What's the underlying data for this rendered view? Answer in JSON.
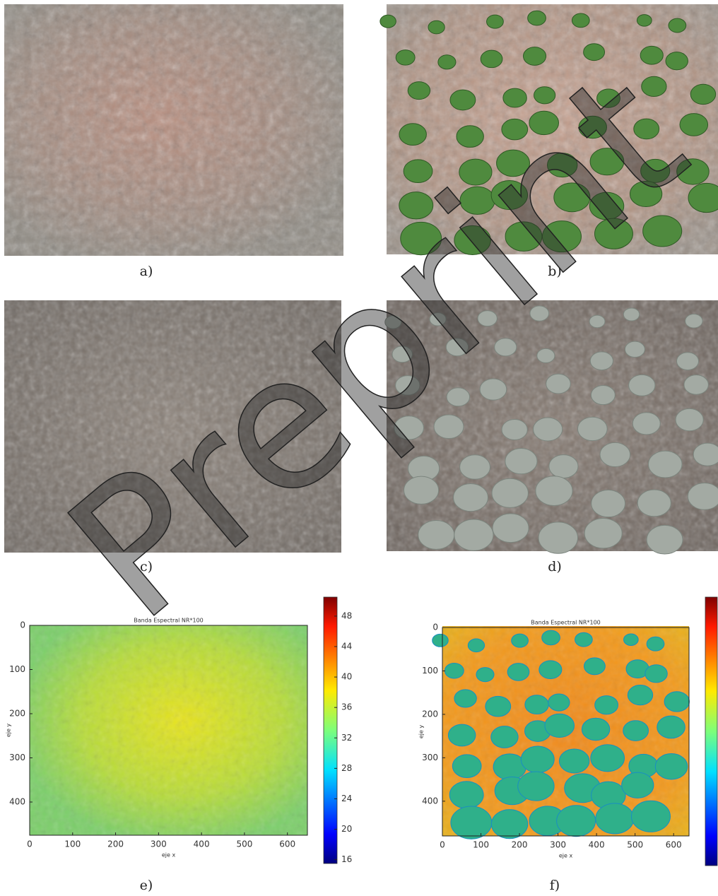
{
  "captions": [
    "a)",
    "b)",
    "c)",
    "d)",
    "e)",
    "f)"
  ],
  "watermark": "Preprint",
  "chart_data": [
    {
      "type": "heatmap",
      "title": "Banda Espectral NR*100",
      "x_label": "eje x",
      "y_label": "eje y",
      "xlim": [
        0,
        640
      ],
      "ylim": [
        480,
        0
      ],
      "xticks": [
        0,
        100,
        200,
        300,
        400,
        500,
        600
      ],
      "yticks": [
        0,
        100,
        200,
        300,
        400
      ],
      "clim": [
        15.5,
        50.5
      ],
      "cticks": [
        16,
        20,
        24,
        28,
        32,
        36,
        40,
        44,
        48
      ]
    },
    {
      "type": "heatmap",
      "title": "Banda Espectral NR*100",
      "x_label": "eje x",
      "y_label": "eje y",
      "xlim": [
        0,
        640
      ],
      "ylim": [
        480,
        0
      ],
      "xticks": [
        0,
        100,
        200,
        300,
        400,
        500,
        600
      ],
      "yticks": [
        0,
        100,
        200,
        300,
        400
      ]
    }
  ]
}
